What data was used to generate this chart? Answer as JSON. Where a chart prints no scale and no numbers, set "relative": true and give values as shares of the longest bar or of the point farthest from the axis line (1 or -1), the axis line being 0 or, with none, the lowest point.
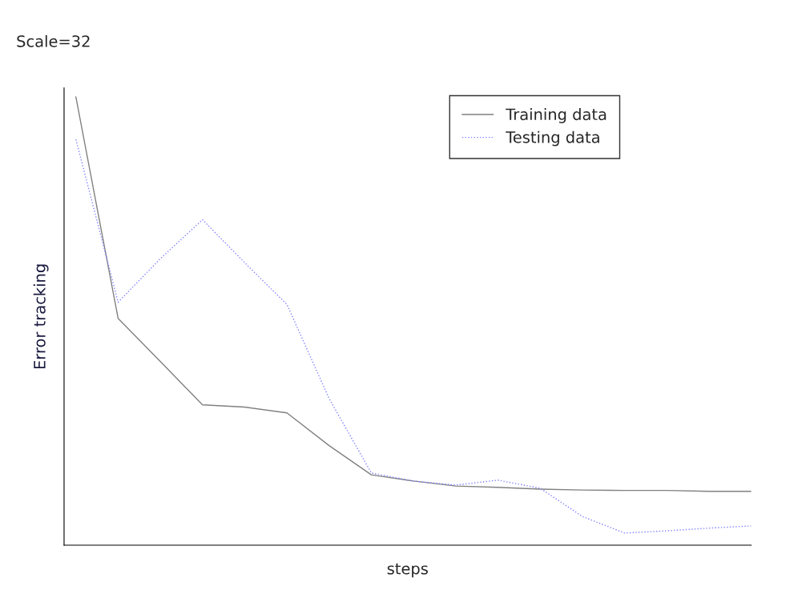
{
  "chart_data": {
    "type": "line",
    "title": "Scale=32",
    "xlabel": "steps",
    "ylabel": "Error tracking",
    "relative": true,
    "legend": "top right",
    "grid": false,
    "categories": [
      null,
      null,
      null,
      null,
      null,
      null,
      null,
      null,
      null,
      null,
      null,
      null,
      null,
      null,
      null,
      null,
      null
    ],
    "series": [
      {
        "name": "Training data",
        "color": "#808080",
        "line_style": "solid",
        "values": [
          1,
          0.506,
          0.41,
          0.313,
          0.308,
          0.295,
          0.222,
          0.157,
          0.143,
          0.132,
          0.129,
          0.125,
          0.123,
          0.122,
          0.122,
          0.12,
          0.12
        ]
      },
      {
        "name": "Testing data",
        "color": "#8080ff",
        "line_style": "dotted",
        "values": [
          0.905,
          0.542,
          0.639,
          0.726,
          0.63,
          0.537,
          0.327,
          0.161,
          0.143,
          0.134,
          0.145,
          0.127,
          0.064,
          0.027,
          0.032,
          0.038,
          0.043
        ]
      }
    ]
  }
}
